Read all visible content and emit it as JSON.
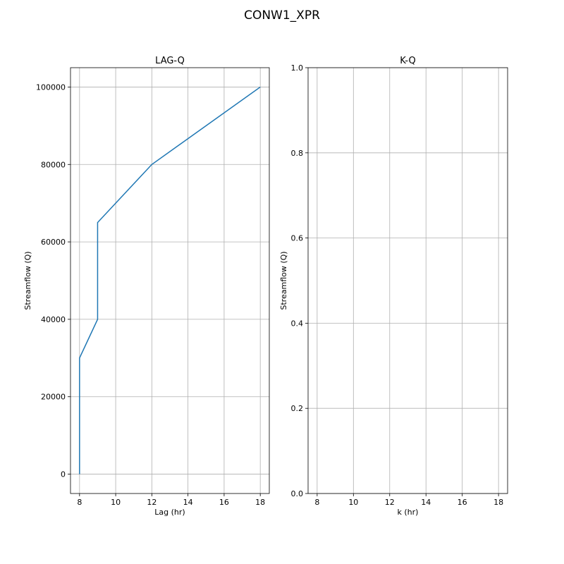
{
  "figure": {
    "title": "CONW1_XPR"
  },
  "chart_data": [
    {
      "type": "line",
      "title": "LAG-Q",
      "xlabel": "Lag (hr)",
      "ylabel": "Streamflow (Q)",
      "xlim": [
        7.5,
        18.5
      ],
      "ylim": [
        -5000,
        105000
      ],
      "xticks": [
        8,
        10,
        12,
        14,
        16,
        18
      ],
      "yticks": [
        0,
        20000,
        40000,
        60000,
        80000,
        100000
      ],
      "grid": true,
      "series": [
        {
          "color": "#1f77b4",
          "x": [
            8,
            8,
            9,
            9,
            12,
            18
          ],
          "y": [
            0,
            30000,
            40000,
            65000,
            80000,
            100000
          ]
        }
      ]
    },
    {
      "type": "line",
      "title": "K-Q",
      "xlabel": "k (hr)",
      "ylabel": "Streamflow (Q)",
      "xlim": [
        7.5,
        18.5
      ],
      "ylim": [
        0.0,
        1.0
      ],
      "xticks": [
        8,
        10,
        12,
        14,
        16,
        18
      ],
      "yticks": [
        0.0,
        0.2,
        0.4,
        0.6,
        0.8,
        1.0
      ],
      "grid": true,
      "series": []
    }
  ]
}
